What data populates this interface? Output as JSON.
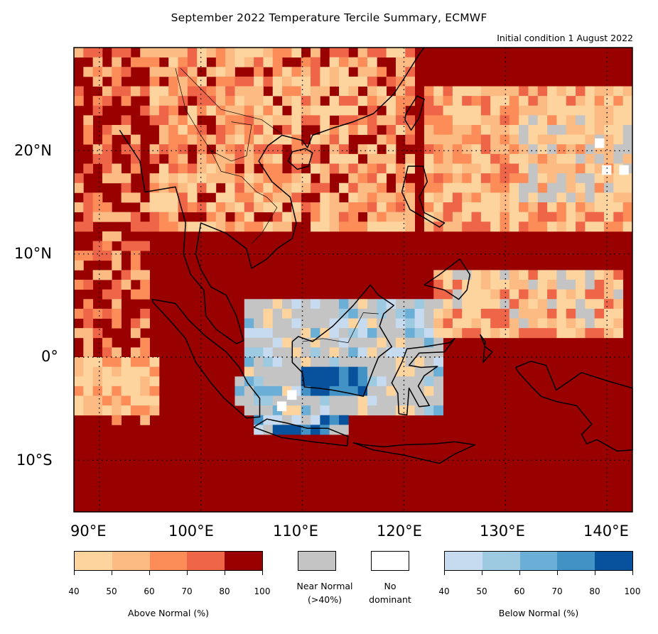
{
  "title": "September 2022 Temperature Tercile Summary, ECMWF",
  "subtitle": "Initial condition 1 August 2022",
  "map": {
    "lon_range": [
      87.5,
      142.5
    ],
    "lat_range": [
      -15,
      30
    ],
    "lon_ticks": [
      "90°E",
      "100°E",
      "110°E",
      "120°E",
      "130°E",
      "140°E"
    ],
    "lat_ticks": [
      "20°N",
      "10°N",
      "0°",
      "10°S"
    ],
    "gridlines": "dotted"
  },
  "legend": {
    "above": {
      "title": "Above Normal (%)",
      "ticks": [
        "40",
        "50",
        "60",
        "70",
        "80",
        "100"
      ],
      "colors": [
        "#fdd49e",
        "#fdbb84",
        "#fc8d59",
        "#ef6548",
        "#990000"
      ]
    },
    "near_normal": {
      "label": "Near Normal\n(>40%)",
      "color": "#c4c4c4"
    },
    "no_dominant": {
      "label": "No\ndominant",
      "color": "#ffffff"
    },
    "below": {
      "title": "Below Normal (%)",
      "ticks": [
        "40",
        "50",
        "60",
        "70",
        "80",
        "100"
      ],
      "colors": [
        "#c6dbef",
        "#9ecae1",
        "#6baed6",
        "#4292c6",
        "#08519c"
      ]
    }
  }
}
